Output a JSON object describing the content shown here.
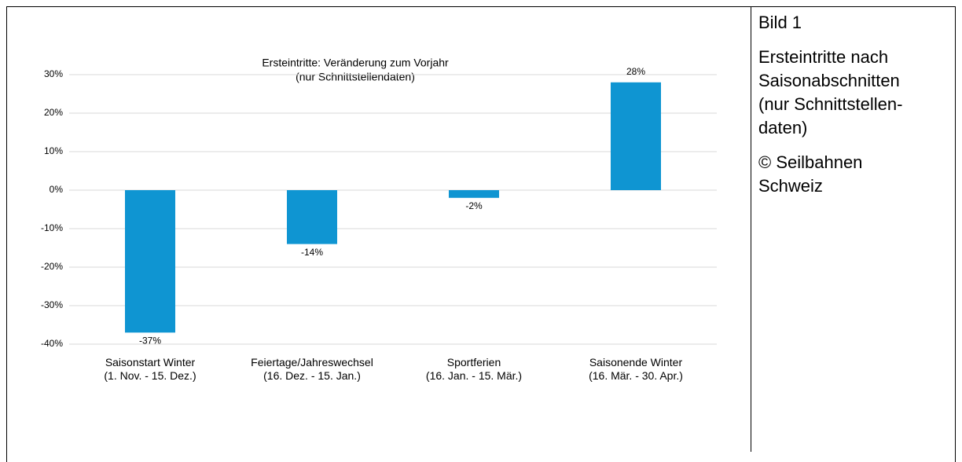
{
  "chart_data": {
    "type": "bar",
    "title": "Ersteintritte: Veränderung zum Vorjahr",
    "subtitle": "(nur Schnittstellendaten)",
    "categories": [
      [
        "Saisonstart Winter",
        "(1. Nov. - 15. Dez.)"
      ],
      [
        "Feiertage/Jahreswechsel",
        "(16. Dez. - 15. Jan.)"
      ],
      [
        "Sportferien",
        "(16. Jan. - 15. Mär.)"
      ],
      [
        "Saisonende Winter",
        "(16. Mär. - 30. Apr.)"
      ]
    ],
    "values": [
      -37,
      -14,
      -2,
      28
    ],
    "value_labels": [
      "-37%",
      "-14%",
      "-2%",
      "28%"
    ],
    "color": "#0f95d2",
    "ylim": [
      -40,
      30
    ],
    "yticks": [
      {
        "value": -40,
        "label": "-40%"
      },
      {
        "value": -30,
        "label": "-30%"
      },
      {
        "value": -20,
        "label": "-20%"
      },
      {
        "value": -10,
        "label": "-10%"
      },
      {
        "value": 0,
        "label": "0%"
      },
      {
        "value": 10,
        "label": "10%"
      },
      {
        "value": 20,
        "label": "20%"
      },
      {
        "value": 30,
        "label": "30%"
      }
    ],
    "grid": true
  },
  "side": {
    "label": "Bild 1",
    "caption_lines": [
      "Ersteintritte nach",
      "Saisonabschnitten",
      "(nur Schnittstellen-",
      "daten)"
    ],
    "credit_lines": [
      "© Seilbahnen",
      "Schweiz"
    ]
  }
}
